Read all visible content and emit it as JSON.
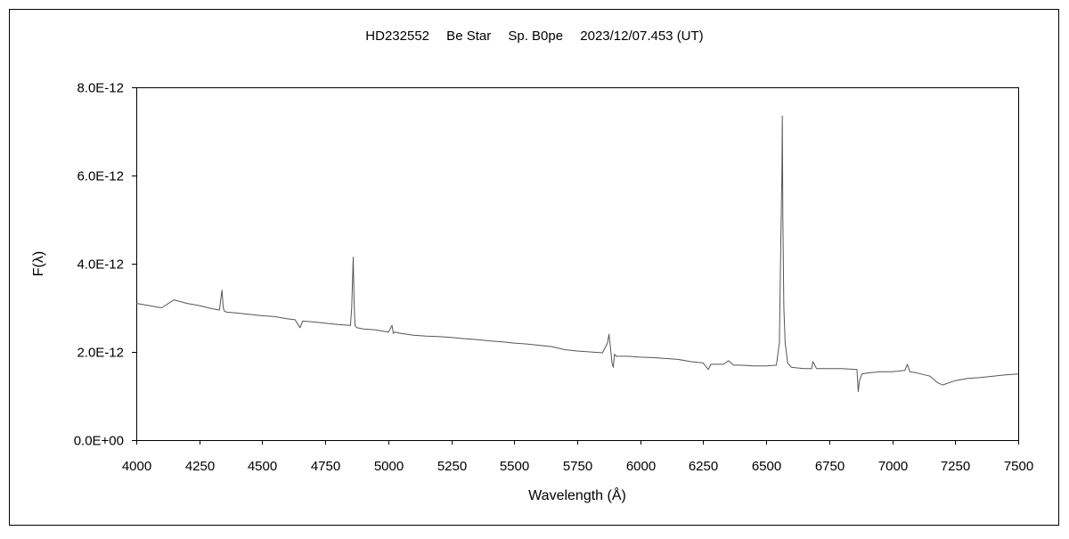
{
  "chart_data": {
    "type": "line",
    "title": "HD232552　 Be Star 　Sp. B0pe 　2023/12/07.453 (UT)",
    "xlabel": "Wavelength (Å)",
    "ylabel": "F(λ)",
    "xlim": [
      4000,
      7500
    ],
    "ylim": [
      0,
      8e-12
    ],
    "x_ticks": [
      4000,
      4250,
      4500,
      4750,
      5000,
      5250,
      5500,
      5750,
      6000,
      6250,
      6500,
      6750,
      7000,
      7250,
      7500
    ],
    "x_tick_labels": [
      "4000",
      "4250",
      "4500",
      "4750",
      "5000",
      "5250",
      "5500",
      "5750",
      "6000",
      "6250",
      "6500",
      "6750",
      "7000",
      "7250",
      "7500"
    ],
    "y_ticks": [
      0,
      2e-12,
      4e-12,
      6e-12,
      8e-12
    ],
    "y_tick_labels": [
      "0.0E+00",
      "2.0E-12",
      "4.0E-12",
      "6.0E-12",
      "8.0E-12"
    ],
    "grid": false,
    "series": [
      {
        "color": "#555555",
        "x": [
          4000,
          4050,
          4100,
          4150,
          4200,
          4250,
          4300,
          4330,
          4340,
          4345,
          4350,
          4360,
          4400,
          4450,
          4500,
          4550,
          4600,
          4630,
          4650,
          4660,
          4700,
          4750,
          4800,
          4850,
          4855,
          4861,
          4864,
          4868,
          4875,
          4900,
          4950,
          5000,
          5015,
          5020,
          5025,
          5050,
          5100,
          5150,
          5200,
          5250,
          5300,
          5350,
          5400,
          5450,
          5500,
          5550,
          5600,
          5650,
          5700,
          5750,
          5800,
          5850,
          5870,
          5876,
          5882,
          5888,
          5893,
          5898,
          5905,
          5950,
          6000,
          6050,
          6100,
          6150,
          6200,
          6250,
          6270,
          6280,
          6300,
          6330,
          6350,
          6370,
          6400,
          6450,
          6500,
          6540,
          6552,
          6558,
          6562,
          6564,
          6566,
          6570,
          6575,
          6585,
          6600,
          6650,
          6680,
          6685,
          6700,
          6750,
          6800,
          6860,
          6865,
          6870,
          6880,
          6900,
          6950,
          7000,
          7050,
          7060,
          7070,
          7100,
          7150,
          7180,
          7200,
          7250,
          7300,
          7350,
          7400,
          7450,
          7500
        ],
        "y": [
          3.1e-12,
          3.05e-12,
          3e-12,
          3.18e-12,
          3.1e-12,
          3.05e-12,
          2.98e-12,
          2.95e-12,
          3.4e-12,
          3e-12,
          2.92e-12,
          2.9e-12,
          2.88e-12,
          2.85e-12,
          2.82e-12,
          2.8e-12,
          2.75e-12,
          2.73e-12,
          2.55e-12,
          2.7e-12,
          2.68e-12,
          2.65e-12,
          2.62e-12,
          2.6e-12,
          3e-12,
          4.15e-12,
          3.2e-12,
          2.6e-12,
          2.55e-12,
          2.52e-12,
          2.5e-12,
          2.45e-12,
          2.6e-12,
          2.42e-12,
          2.45e-12,
          2.42e-12,
          2.38e-12,
          2.36e-12,
          2.35e-12,
          2.33e-12,
          2.3e-12,
          2.28e-12,
          2.25e-12,
          2.23e-12,
          2.2e-12,
          2.18e-12,
          2.15e-12,
          2.12e-12,
          2.05e-12,
          2.02e-12,
          2e-12,
          1.98e-12,
          2.2e-12,
          2.4e-12,
          2.1e-12,
          1.75e-12,
          1.65e-12,
          1.95e-12,
          1.9e-12,
          1.9e-12,
          1.88e-12,
          1.87e-12,
          1.85e-12,
          1.83e-12,
          1.78e-12,
          1.75e-12,
          1.6e-12,
          1.72e-12,
          1.72e-12,
          1.72e-12,
          1.8e-12,
          1.7e-12,
          1.7e-12,
          1.68e-12,
          1.68e-12,
          1.7e-12,
          2.2e-12,
          4.5e-12,
          6e-12,
          7.35e-12,
          5e-12,
          3e-12,
          2.2e-12,
          1.75e-12,
          1.65e-12,
          1.62e-12,
          1.62e-12,
          1.78e-12,
          1.62e-12,
          1.62e-12,
          1.62e-12,
          1.6e-12,
          1.1e-12,
          1.35e-12,
          1.5e-12,
          1.52e-12,
          1.55e-12,
          1.55e-12,
          1.58e-12,
          1.72e-12,
          1.55e-12,
          1.52e-12,
          1.45e-12,
          1.3e-12,
          1.25e-12,
          1.35e-12,
          1.4e-12,
          1.42e-12,
          1.45e-12,
          1.48e-12,
          1.5e-12
        ]
      }
    ]
  }
}
